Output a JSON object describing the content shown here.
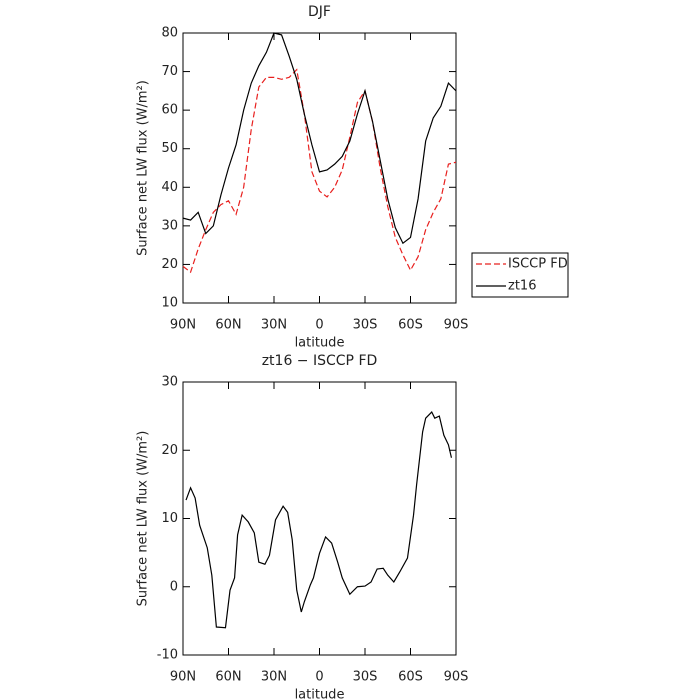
{
  "chart_data": [
    {
      "type": "line",
      "title": "DJF",
      "xlabel": "latitude",
      "ylabel": "Surface net LW flux (W/m²)",
      "x": [
        90,
        85,
        80,
        75,
        70,
        65,
        60,
        55,
        50,
        45,
        40,
        35,
        30,
        25,
        20,
        15,
        10,
        5,
        0,
        -5,
        -10,
        -15,
        -20,
        -25,
        -30,
        -35,
        -40,
        -45,
        -50,
        -55,
        -60,
        -65,
        -70,
        -75,
        -80,
        -85,
        -90
      ],
      "series": [
        {
          "name": "ISCCP FD",
          "color": "#e8201e",
          "linestyle": "dashed",
          "values": [
            19.5,
            18,
            24,
            29,
            33.5,
            35.5,
            36.5,
            33,
            40,
            55,
            66,
            68.5,
            68.5,
            68,
            68.5,
            70.5,
            59,
            44,
            39,
            37.5,
            40,
            44.5,
            53,
            62,
            65,
            57,
            45,
            35,
            27,
            22.5,
            18.5,
            22,
            29,
            33.5,
            37,
            46,
            46.5
          ]
        },
        {
          "name": "zt16",
          "color": "#000000",
          "linestyle": "solid",
          "values": [
            32,
            31.5,
            33.5,
            28,
            30,
            38,
            45,
            51,
            60,
            67,
            71.5,
            75,
            80,
            79.5,
            74,
            68,
            59,
            51,
            44,
            44.5,
            46,
            48,
            52,
            59,
            65,
            57,
            47,
            37,
            29.5,
            25.5,
            27,
            37,
            52,
            58,
            61,
            67,
            65
          ]
        }
      ],
      "xlim": [
        90,
        -90
      ],
      "xticks": [
        {
          "value": 90,
          "label": "90N"
        },
        {
          "value": 60,
          "label": "60N"
        },
        {
          "value": 30,
          "label": "30N"
        },
        0,
        {
          "value": -30,
          "label": "30S"
        },
        {
          "value": -60,
          "label": "60S"
        },
        {
          "value": -90,
          "label": "90S"
        }
      ],
      "ylim": [
        10,
        80
      ],
      "yticks": [
        10,
        20,
        30,
        40,
        50,
        60,
        70,
        80
      ],
      "legend": "right"
    },
    {
      "type": "line",
      "title": "zt16 − ISCCP FD",
      "xlabel": "latitude",
      "ylabel": "Surface net LW flux (W/m²)",
      "x": [
        88,
        85,
        82,
        79,
        74,
        71,
        68,
        62,
        59,
        56,
        54,
        51,
        47,
        43,
        40,
        36,
        33,
        29,
        24,
        21,
        18,
        15,
        12,
        10,
        6,
        4,
        0,
        -4,
        -8,
        -12,
        -15,
        -20,
        -25,
        -30,
        -34,
        -38,
        -42,
        -45,
        -49,
        -53,
        -58,
        -62,
        -64,
        -68,
        -70,
        -74,
        -76,
        -79,
        -82,
        -85,
        -87
      ],
      "series": [
        {
          "name": "zt16 − ISCCP FD",
          "color": "#000000",
          "linestyle": "solid",
          "values": [
            12.7,
            14.5,
            13,
            9,
            5.7,
            1.7,
            -5.9,
            -6,
            -0.5,
            1.3,
            7.6,
            10.5,
            9.5,
            7.9,
            3.6,
            3.3,
            4.6,
            9.8,
            11.8,
            10.9,
            6.9,
            -0.5,
            -3.7,
            -2.2,
            0.3,
            1.3,
            4.9,
            7.3,
            6.4,
            3.6,
            1.3,
            -1.1,
            0,
            0.1,
            0.7,
            2.6,
            2.7,
            1.7,
            0.7,
            2.2,
            4.2,
            10.5,
            14.9,
            22.7,
            24.7,
            25.6,
            24.7,
            25,
            22.2,
            20.8,
            18.9
          ]
        }
      ],
      "xlim": [
        90,
        -90
      ],
      "xticks": [
        {
          "value": 90,
          "label": "90N"
        },
        {
          "value": 60,
          "label": "60N"
        },
        {
          "value": 30,
          "label": "30N"
        },
        0,
        {
          "value": -30,
          "label": "30S"
        },
        {
          "value": -60,
          "label": "60S"
        },
        {
          "value": -90,
          "label": "90S"
        }
      ],
      "ylim": [
        -10,
        30
      ],
      "yticks": [
        -10,
        0,
        10,
        20,
        30
      ]
    }
  ]
}
